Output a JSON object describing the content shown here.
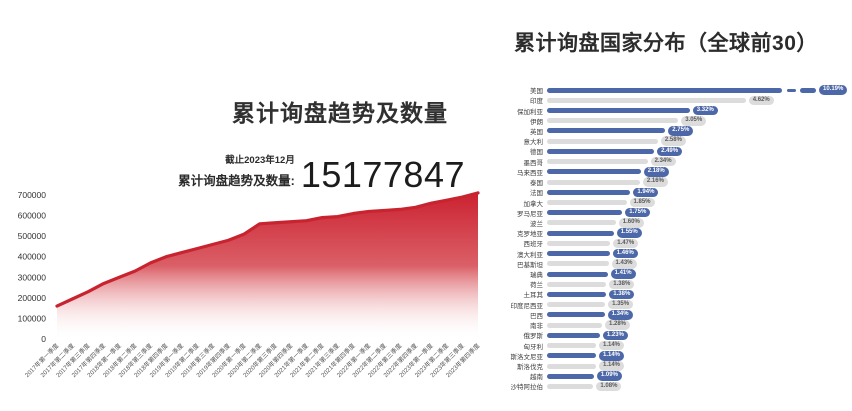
{
  "page": {
    "background": "#ffffff"
  },
  "trend_panel": {
    "title": "累计询盘趋势及数量",
    "stat_note": "截止2023年12月",
    "stat_label": "累计询盘趋势及数量:",
    "stat_value": "15177847"
  },
  "country_panel": {
    "title": "累计询盘国家分布（全球前30）"
  },
  "colors": {
    "trend_line_red": "#c8242f",
    "trend_fill_top": "#cb2130",
    "bar_blue": "#4d68a8",
    "bar_gray": "#dcdcdc",
    "pill_gray_text": "#595959",
    "pill_blue_text": "#ffffff"
  },
  "chart_data": [
    {
      "type": "area",
      "title": "累计询盘趋势及数量",
      "xlabel": "",
      "ylabel": "",
      "ylim": [
        0,
        700000
      ],
      "ytick_step": 100000,
      "grid": false,
      "legend": "none",
      "categories": [
        "2017年第一季度",
        "2017年第二季度",
        "2017年第三季度",
        "2017年第四季度",
        "2018年第一季度",
        "2018年第二季度",
        "2018年第三季度",
        "2018年第四季度",
        "2019年第一季度",
        "2019年第二季度",
        "2019年第三季度",
        "2019年第四季度",
        "2020年第一季度",
        "2020年第二季度",
        "2020年第三季度",
        "2020年第四季度",
        "2021年第一季度",
        "2021年第二季度",
        "2021年第三季度",
        "2021年第四季度",
        "2022年第一季度",
        "2022年第二季度",
        "2022年第三季度",
        "2022年第四季度",
        "2023年第一季度",
        "2023年第二季度",
        "2023年第三季度",
        "2023年第四季度"
      ],
      "values": [
        160000,
        195000,
        230000,
        270000,
        300000,
        330000,
        370000,
        400000,
        420000,
        440000,
        460000,
        480000,
        510000,
        560000,
        565000,
        570000,
        575000,
        590000,
        595000,
        610000,
        620000,
        625000,
        630000,
        640000,
        660000,
        675000,
        690000,
        710000
      ]
    },
    {
      "type": "bar",
      "orientation": "horizontal",
      "title": "累计询盘国家分布（全球前30）",
      "xlabel": "",
      "ylabel": "",
      "grid": false,
      "legend": "none",
      "first_bar_axis_break": true,
      "categories": [
        "美国",
        "印度",
        "保加利亚",
        "伊朗",
        "英国",
        "意大利",
        "德国",
        "墨西哥",
        "马来西亚",
        "泰国",
        "法国",
        "加拿大",
        "罗马尼亚",
        "波兰",
        "克罗地亚",
        "西班牙",
        "澳大利亚",
        "巴基斯坦",
        "瑞典",
        "荷兰",
        "土耳其",
        "印度尼西亚",
        "巴西",
        "南非",
        "俄罗斯",
        "匈牙利",
        "斯洛文尼亚",
        "斯洛伐克",
        "越南",
        "沙特阿拉伯"
      ],
      "values": [
        10.19,
        4.62,
        3.32,
        3.05,
        2.75,
        2.58,
        2.49,
        2.34,
        2.18,
        2.16,
        1.94,
        1.85,
        1.75,
        1.6,
        1.55,
        1.47,
        1.46,
        1.43,
        1.41,
        1.38,
        1.38,
        1.35,
        1.34,
        1.28,
        1.23,
        1.14,
        1.14,
        1.14,
        1.09,
        1.08
      ],
      "labels": [
        "10.19%",
        "4.62%",
        "3.32%",
        "3.05%",
        "2.75%",
        "2.58%",
        "2.49%",
        "2.34%",
        "2.18%",
        "2.16%",
        "1.94%",
        "1.85%",
        "1.75%",
        "1.60%",
        "1.55%",
        "1.47%",
        "1.46%",
        "1.43%",
        "1.41%",
        "1.38%",
        "1.38%",
        "1.35%",
        "1.34%",
        "1.28%",
        "1.23%",
        "1.14%",
        "1.14%",
        "1.14%",
        "1.09%",
        "1.08%"
      ]
    }
  ]
}
